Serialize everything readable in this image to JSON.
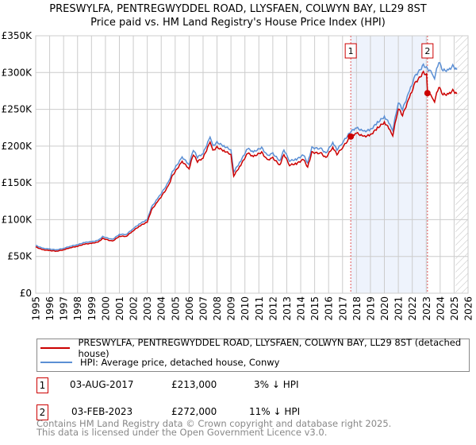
{
  "chart_data": {
    "type": "line",
    "title": "PRESWYLFA, PENTREGWYDDEL ROAD, LLYSFAEN, COLWYN BAY, LL29 8ST",
    "subtitle": "Price paid vs. HM Land Registry's House Price Index (HPI)",
    "xlim": [
      1995,
      2026
    ],
    "ylim": [
      0,
      350000
    ],
    "x_ticks": [
      "1995",
      "1996",
      "1997",
      "1998",
      "1999",
      "2000",
      "2001",
      "2002",
      "2003",
      "2004",
      "2005",
      "2006",
      "2007",
      "2008",
      "2009",
      "2010",
      "2011",
      "2012",
      "2013",
      "2014",
      "2015",
      "2016",
      "2017",
      "2018",
      "2019",
      "2020",
      "2021",
      "2022",
      "2023",
      "2024",
      "2025",
      "2026"
    ],
    "y_ticks": [
      {
        "v": 0,
        "label": "£0"
      },
      {
        "v": 50000,
        "label": "£50K"
      },
      {
        "v": 100000,
        "label": "£100K"
      },
      {
        "v": 150000,
        "label": "£150K"
      },
      {
        "v": 200000,
        "label": "£200K"
      },
      {
        "v": 250000,
        "label": "£250K"
      },
      {
        "v": 300000,
        "label": "£300K"
      },
      {
        "v": 350000,
        "label": "£350K"
      }
    ],
    "grid": true,
    "forecast_hatch_from": 2025.1,
    "series": [
      {
        "name": "PRESWYLFA, PENTREGWYDDEL ROAD, LLYSFAEN, COLWYN BAY, LL29 8ST (detached house)",
        "color": "#cc0000",
        "derived_from_hpi_ratio": [
          [
            1995,
            0.968
          ],
          [
            2023.09,
            0.968
          ],
          [
            2023.1,
            0.892
          ],
          [
            2026,
            0.892
          ]
        ]
      },
      {
        "name": "HPI: Average price, detached house, Conwy",
        "color": "#5b8fd4",
        "points": [
          [
            1995.0,
            65
          ],
          [
            1995.5,
            61
          ],
          [
            1996,
            60
          ],
          [
            1996.5,
            59
          ],
          [
            1997,
            61
          ],
          [
            1997.5,
            64
          ],
          [
            1998,
            66
          ],
          [
            1998.5,
            69
          ],
          [
            1999,
            70
          ],
          [
            1999.5,
            72
          ],
          [
            1999.8,
            77
          ],
          [
            2000.5,
            73
          ],
          [
            2001,
            80
          ],
          [
            2001.5,
            80
          ],
          [
            2002,
            88
          ],
          [
            2002.5,
            95
          ],
          [
            2003,
            100
          ],
          [
            2003.3,
            117
          ],
          [
            2003.8,
            130
          ],
          [
            2004.5,
            150
          ],
          [
            2004.8,
            165
          ],
          [
            2005.5,
            185
          ],
          [
            2006,
            175
          ],
          [
            2006.3,
            195
          ],
          [
            2006.6,
            185
          ],
          [
            2007.0,
            190
          ],
          [
            2007.5,
            212
          ],
          [
            2007.7,
            200
          ],
          [
            2008,
            205
          ],
          [
            2008.5,
            200
          ],
          [
            2009,
            195
          ],
          [
            2009.2,
            165
          ],
          [
            2009.7,
            180
          ],
          [
            2010.2,
            197
          ],
          [
            2010.6,
            192
          ],
          [
            2011.2,
            198
          ],
          [
            2011.6,
            187
          ],
          [
            2012,
            190
          ],
          [
            2012.5,
            180
          ],
          [
            2012.8,
            195
          ],
          [
            2013.2,
            180
          ],
          [
            2013.7,
            182
          ],
          [
            2014.2,
            188
          ],
          [
            2014.5,
            177
          ],
          [
            2014.8,
            198
          ],
          [
            2015.5,
            196
          ],
          [
            2015.8,
            190
          ],
          [
            2016.3,
            205
          ],
          [
            2016.6,
            195
          ],
          [
            2017,
            205
          ],
          [
            2017.6,
            220
          ],
          [
            2018,
            225
          ],
          [
            2018.5,
            220
          ],
          [
            2019,
            222
          ],
          [
            2019.5,
            232
          ],
          [
            2020,
            240
          ],
          [
            2020.4,
            230
          ],
          [
            2020.6,
            222
          ],
          [
            2021,
            260
          ],
          [
            2021.3,
            250
          ],
          [
            2021.8,
            275
          ],
          [
            2022.2,
            295
          ],
          [
            2022.5,
            302
          ],
          [
            2022.8,
            310
          ],
          [
            2023.1,
            305
          ],
          [
            2023.4,
            300
          ],
          [
            2023.6,
            293
          ],
          [
            2023.9,
            315
          ],
          [
            2024.2,
            303
          ],
          [
            2024.6,
            303
          ],
          [
            2024.9,
            309
          ],
          [
            2025.2,
            304
          ]
        ],
        "unit": "thousand GBP"
      }
    ],
    "sales": [
      {
        "id": "1",
        "x": 2017.59,
        "price": 213000,
        "date": "03-AUG-2017",
        "price_label": "£213,000",
        "hpi_diff": "3% ↓ HPI"
      },
      {
        "id": "2",
        "x": 2023.09,
        "price": 272000,
        "date": "03-FEB-2023",
        "price_label": "£272,000",
        "hpi_diff": "11% ↓ HPI"
      }
    ],
    "legend": {
      "placement": "bottom",
      "entries": [
        "PRESWYLFA, PENTREGWYDDEL ROAD, LLYSFAEN, COLWYN BAY, LL29 8ST (detached house)",
        "HPI: Average price, detached house, Conwy"
      ]
    }
  },
  "footer": {
    "line1": "Contains HM Land Registry data © Crown copyright and database right 2025.",
    "line2": "This data is licensed under the Open Government Licence v3.0."
  }
}
